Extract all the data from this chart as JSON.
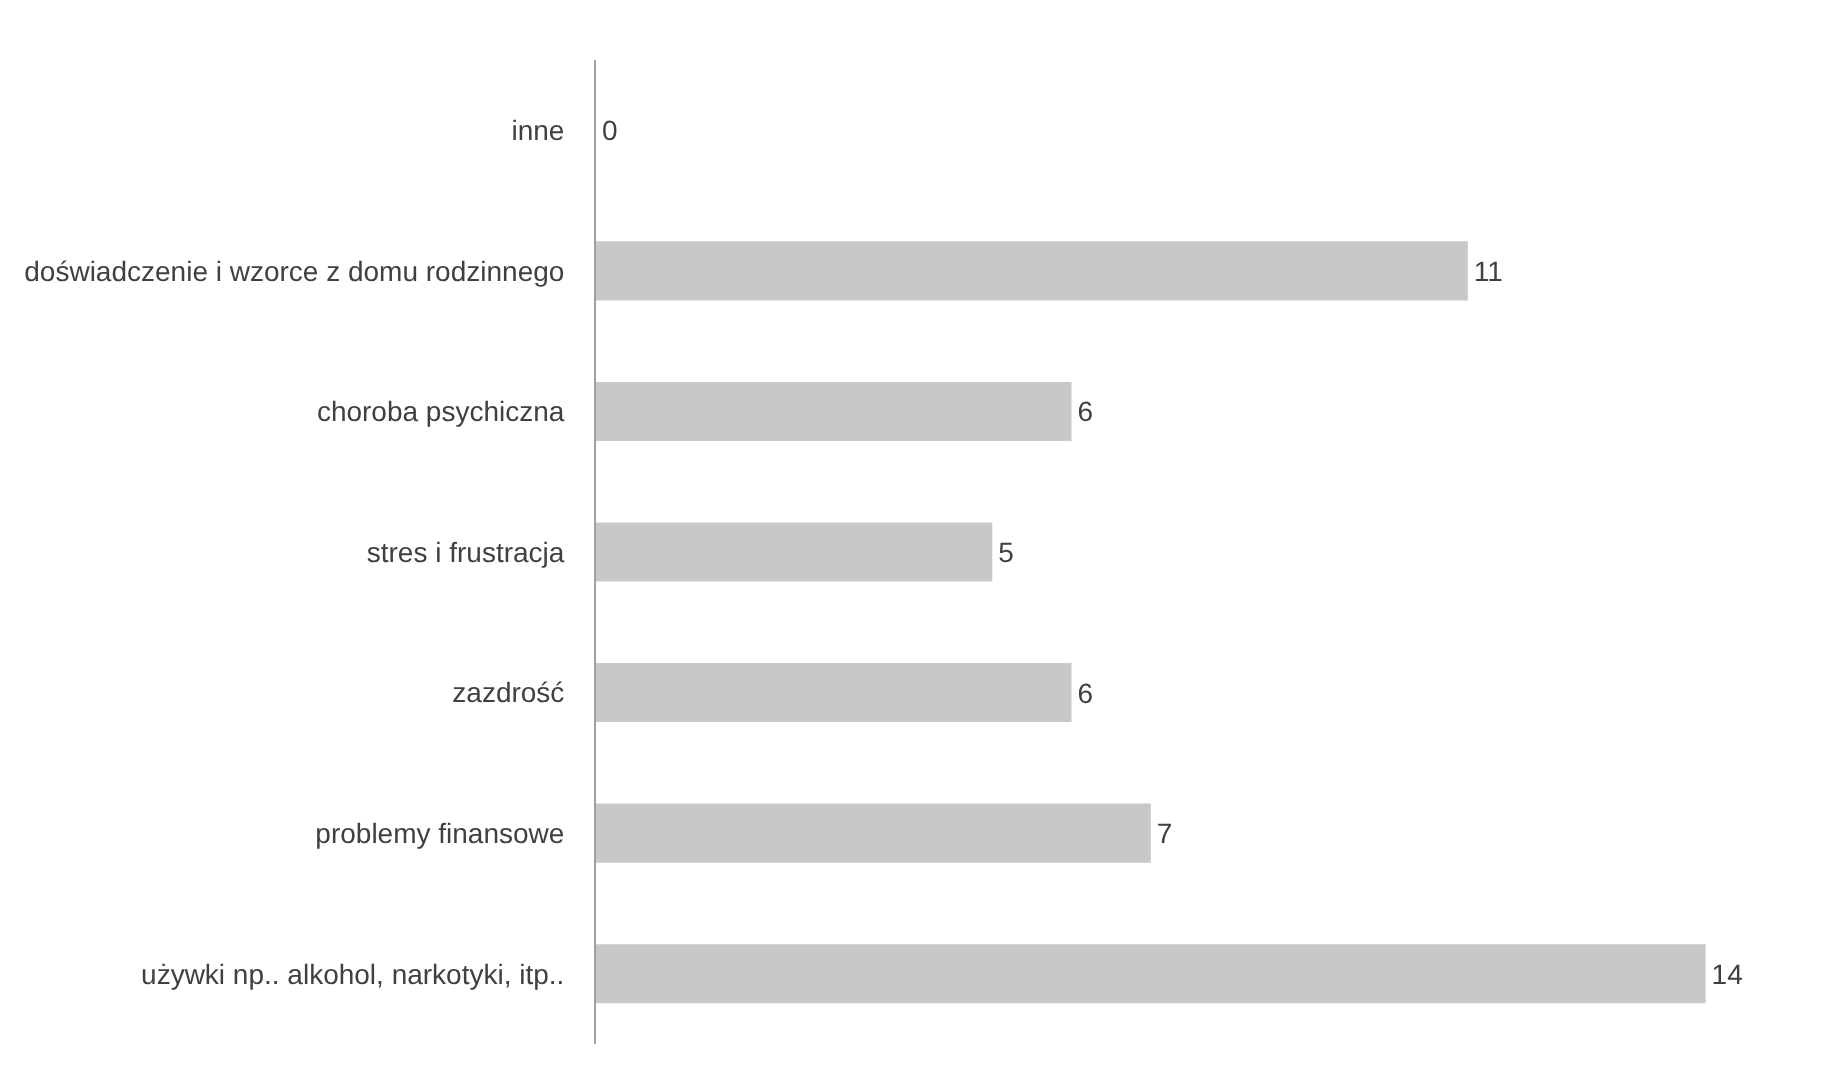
{
  "chart_data": {
    "type": "bar",
    "orientation": "horizontal",
    "categories": [
      "inne",
      "doświadczenie i wzorce z domu rodzinnego",
      "choroba psychiczna",
      "stres i frustracja",
      "zazdrość",
      "problemy finansowe",
      "używki np.. alkohol, narkotyki, itp.."
    ],
    "values": [
      0,
      11,
      6,
      5,
      6,
      7,
      14
    ],
    "color": "#c8c8c8",
    "data_labels": true,
    "tick_labels": "y",
    "legend": false
  }
}
